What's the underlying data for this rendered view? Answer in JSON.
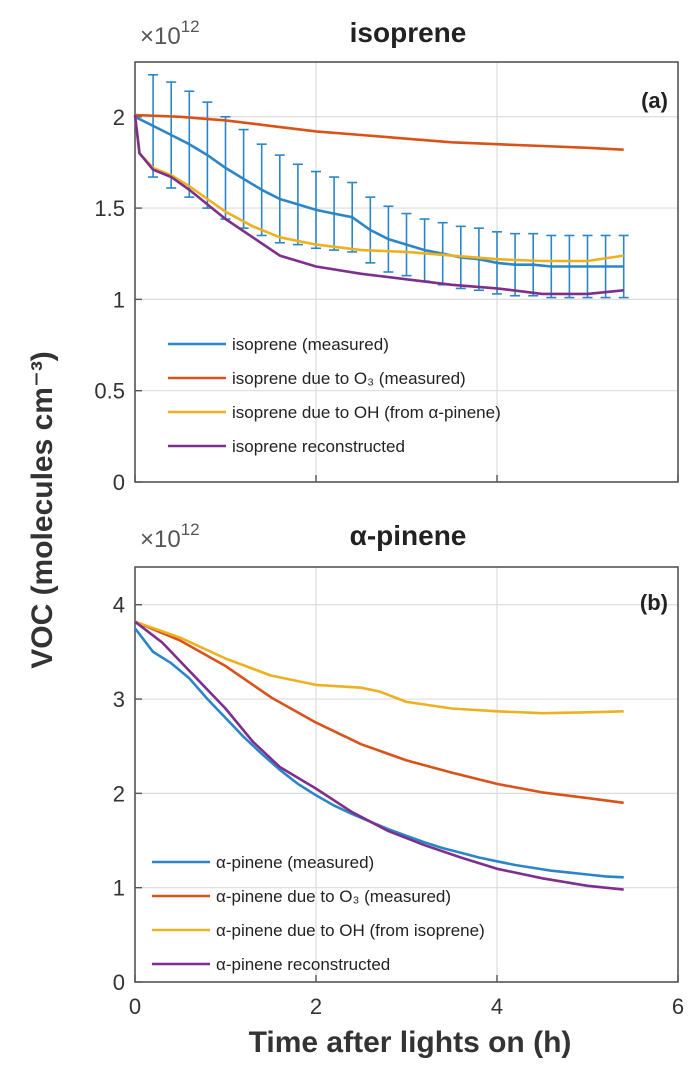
{
  "figure": {
    "ylabel": "VOC (molecules cm⁻³)",
    "xlabel": "Time after lights on (h)"
  },
  "chart_data": [
    {
      "type": "line",
      "title": "isoprene",
      "panel_label": "(a)",
      "multiplier": "×10",
      "multiplier_exp": "12",
      "xlabel": "Time after lights on (h)",
      "ylabel": "VOC (molecules cm⁻³)",
      "xlim": [
        0,
        6
      ],
      "ylim": [
        0,
        2.3
      ],
      "xticks": [
        "0",
        "2",
        "4",
        "6"
      ],
      "yticks": [
        "0",
        "0.5",
        "1",
        "1.5",
        "2"
      ],
      "ytick_values": [
        0,
        0.5,
        1,
        1.5,
        2
      ],
      "xtick_values": [
        0,
        2,
        4,
        6
      ],
      "grid": true,
      "legend_position": "bottom-left",
      "series": [
        {
          "name": "isoprene (measured)",
          "color": "#2a86c8",
          "x": [
            0,
            0.2,
            0.4,
            0.6,
            0.8,
            1.0,
            1.2,
            1.4,
            1.6,
            1.8,
            2.0,
            2.2,
            2.4,
            2.6,
            2.8,
            3.0,
            3.2,
            3.4,
            3.6,
            3.8,
            4.0,
            4.2,
            4.4,
            4.6,
            4.8,
            5.0,
            5.2,
            5.4
          ],
          "y": [
            2.0,
            1.95,
            1.9,
            1.85,
            1.79,
            1.72,
            1.66,
            1.6,
            1.55,
            1.52,
            1.49,
            1.47,
            1.45,
            1.38,
            1.33,
            1.3,
            1.27,
            1.25,
            1.23,
            1.22,
            1.2,
            1.19,
            1.19,
            1.18,
            1.18,
            1.18,
            1.18,
            1.18
          ],
          "error": [
            0.0,
            0.28,
            0.29,
            0.29,
            0.29,
            0.28,
            0.27,
            0.25,
            0.24,
            0.22,
            0.21,
            0.2,
            0.19,
            0.18,
            0.18,
            0.17,
            0.17,
            0.17,
            0.17,
            0.17,
            0.17,
            0.17,
            0.17,
            0.17,
            0.17,
            0.17,
            0.17,
            0.17
          ]
        },
        {
          "name": "isoprene due to O₃ (measured)",
          "color": "#d95319",
          "x": [
            0,
            0.5,
            1.0,
            1.5,
            2.0,
            2.5,
            3.0,
            3.5,
            4.0,
            4.5,
            5.0,
            5.4
          ],
          "y": [
            2.01,
            2.0,
            1.98,
            1.95,
            1.92,
            1.9,
            1.88,
            1.86,
            1.85,
            1.84,
            1.83,
            1.82
          ]
        },
        {
          "name": "isoprene due to OH (from α-pinene)",
          "color": "#edb120",
          "x": [
            0,
            0.05,
            0.2,
            0.4,
            0.6,
            0.8,
            1.0,
            1.3,
            1.6,
            2.0,
            2.5,
            3.0,
            3.5,
            4.0,
            4.5,
            5.0,
            5.4
          ],
          "y": [
            2.01,
            1.8,
            1.72,
            1.68,
            1.62,
            1.55,
            1.48,
            1.4,
            1.34,
            1.3,
            1.27,
            1.26,
            1.24,
            1.22,
            1.21,
            1.21,
            1.24
          ]
        },
        {
          "name": "isoprene reconstructed",
          "color": "#7e2f8e",
          "x": [
            0,
            0.05,
            0.2,
            0.4,
            0.6,
            0.8,
            1.0,
            1.3,
            1.6,
            2.0,
            2.5,
            3.0,
            3.5,
            4.0,
            4.5,
            5.0,
            5.4
          ],
          "y": [
            2.01,
            1.8,
            1.71,
            1.67,
            1.6,
            1.52,
            1.44,
            1.34,
            1.24,
            1.18,
            1.14,
            1.11,
            1.08,
            1.06,
            1.03,
            1.03,
            1.05
          ]
        }
      ]
    },
    {
      "type": "line",
      "title": "α-pinene",
      "panel_label": "(b)",
      "multiplier": "×10",
      "multiplier_exp": "12",
      "xlabel": "Time after lights on (h)",
      "ylabel": "VOC (molecules cm⁻³)",
      "xlim": [
        0,
        6
      ],
      "ylim": [
        0,
        4.4
      ],
      "xticks": [
        "0",
        "2",
        "4",
        "6"
      ],
      "yticks": [
        "0",
        "1",
        "2",
        "3",
        "4"
      ],
      "ytick_values": [
        0,
        1,
        2,
        3,
        4
      ],
      "xtick_values": [
        0,
        2,
        4,
        6
      ],
      "grid": true,
      "legend_position": "bottom-left",
      "series": [
        {
          "name": "α-pinene (measured)",
          "color": "#2a86c8",
          "x": [
            0,
            0.2,
            0.4,
            0.6,
            0.8,
            1.0,
            1.2,
            1.4,
            1.6,
            1.8,
            2.0,
            2.2,
            2.4,
            2.6,
            2.8,
            3.0,
            3.2,
            3.4,
            3.6,
            3.8,
            4.0,
            4.2,
            4.4,
            4.6,
            4.8,
            5.0,
            5.2,
            5.4
          ],
          "y": [
            3.75,
            3.5,
            3.38,
            3.22,
            3.0,
            2.8,
            2.6,
            2.42,
            2.25,
            2.1,
            1.98,
            1.87,
            1.78,
            1.7,
            1.62,
            1.55,
            1.48,
            1.42,
            1.37,
            1.32,
            1.28,
            1.24,
            1.21,
            1.18,
            1.16,
            1.14,
            1.12,
            1.11
          ]
        },
        {
          "name": "α-pinene due to O₃ (measured)",
          "color": "#d95319",
          "x": [
            0,
            0.5,
            1.0,
            1.5,
            2.0,
            2.5,
            3.0,
            3.5,
            4.0,
            4.5,
            5.0,
            5.4
          ],
          "y": [
            3.82,
            3.62,
            3.35,
            3.02,
            2.75,
            2.52,
            2.35,
            2.22,
            2.1,
            2.01,
            1.95,
            1.9
          ]
        },
        {
          "name": "α-pinene due to OH (from isoprene)",
          "color": "#edb120",
          "x": [
            0,
            0.5,
            1.0,
            1.5,
            2.0,
            2.5,
            2.7,
            3.0,
            3.5,
            4.0,
            4.5,
            5.0,
            5.4
          ],
          "y": [
            3.82,
            3.65,
            3.43,
            3.25,
            3.15,
            3.12,
            3.08,
            2.97,
            2.9,
            2.87,
            2.85,
            2.86,
            2.87
          ]
        },
        {
          "name": "α-pinene reconstructed",
          "color": "#7e2f8e",
          "x": [
            0,
            0.3,
            0.6,
            1.0,
            1.3,
            1.6,
            2.0,
            2.4,
            2.8,
            3.2,
            3.6,
            4.0,
            4.5,
            5.0,
            5.4
          ],
          "y": [
            3.82,
            3.6,
            3.3,
            2.9,
            2.55,
            2.28,
            2.05,
            1.8,
            1.6,
            1.45,
            1.32,
            1.2,
            1.1,
            1.02,
            0.98
          ]
        }
      ]
    }
  ]
}
